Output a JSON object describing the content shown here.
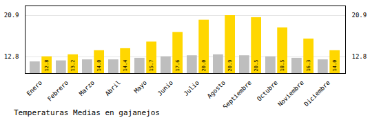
{
  "chart_data": {
    "type": "bar",
    "title": "Temperaturas Medias en gajanejos",
    "categories": [
      "Enero",
      "Febrero",
      "Marzo",
      "Abril",
      "Mayo",
      "Junio",
      "Julio",
      "Agosto",
      "Septiembre",
      "Octubre",
      "Noviembre",
      "Diciembre"
    ],
    "series": [
      {
        "color": "#BEBEBE",
        "values": [
          11.8,
          12.0,
          12.2,
          12.2,
          12.5,
          12.8,
          13.0,
          13.2,
          13.0,
          12.8,
          12.5,
          12.2
        ]
      },
      {
        "color": "#FFD700",
        "values": [
          12.8,
          13.2,
          14.0,
          14.4,
          15.7,
          17.6,
          20.0,
          20.9,
          20.5,
          18.5,
          16.3,
          14.0
        ],
        "data_labels": true,
        "value_labels": [
          "12.8",
          "13.2",
          "14.0",
          "14.4",
          "15.7",
          "17.6",
          "20.0",
          "20.9",
          "20.5",
          "18.5",
          "16.3",
          "14.0"
        ]
      }
    ],
    "ylim": [
      9.5,
      22.8
    ],
    "yticks": [
      12.8,
      20.9
    ],
    "grid": true
  }
}
